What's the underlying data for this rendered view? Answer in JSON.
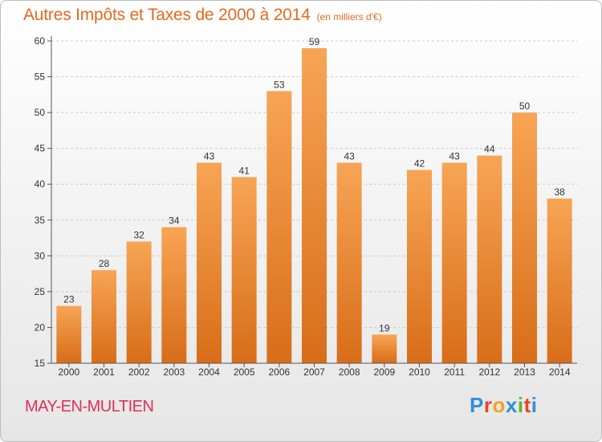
{
  "chart_data": {
    "type": "bar",
    "title": "Autres Impôts et Taxes de 2000 à 2014",
    "subtitle": "(en milliers d'€)",
    "categories": [
      "2000",
      "2001",
      "2002",
      "2003",
      "2004",
      "2005",
      "2006",
      "2007",
      "2008",
      "2009",
      "2010",
      "2011",
      "2012",
      "2013",
      "2014"
    ],
    "values": [
      23,
      28,
      32,
      34,
      43,
      41,
      53,
      59,
      43,
      19,
      42,
      43,
      44,
      50,
      38
    ],
    "ylim": [
      15,
      60
    ],
    "yticks": [
      15,
      20,
      25,
      30,
      35,
      40,
      45,
      50,
      55,
      60
    ],
    "grid": "y",
    "legend": "none",
    "bar_color": "#f0963f",
    "title_color": "#e46a1e"
  },
  "footer": {
    "commune": "MAY-EN-MULTIEN",
    "commune_color": "#e0305a",
    "logo_letters": [
      "P",
      "r",
      "o",
      "x",
      "i",
      "t",
      "i"
    ],
    "logo_colors": [
      "#2f8fd6",
      "#e8442a",
      "#f3a21f",
      "#2f8fd6",
      "#5cb531",
      "#e8442a",
      "#2f8fd6"
    ]
  }
}
